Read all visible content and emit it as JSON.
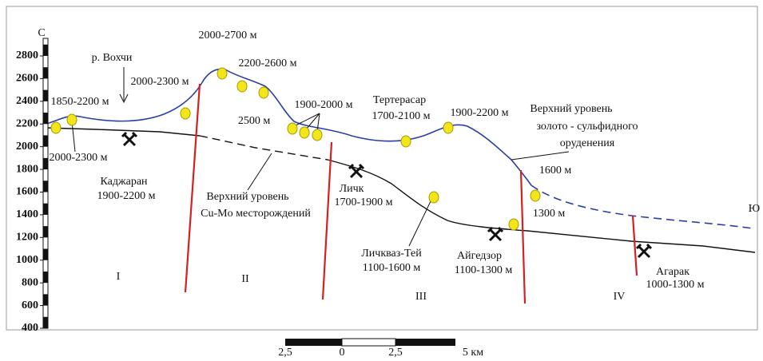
{
  "axis": {
    "ticks": [
      2800,
      2600,
      2400,
      2200,
      2000,
      1800,
      1600,
      1400,
      1200,
      1000,
      800,
      600,
      400
    ]
  },
  "compass": {
    "north": "С",
    "south": "Ю"
  },
  "zones": [
    "I",
    "II",
    "III",
    "IV"
  ],
  "labels": [
    "2000-2700 м",
    "р. Вохчи",
    "2000-2300 м",
    "2200-2600 м",
    "1850-2200 м",
    "2500 м",
    "1900-2000 м",
    "Тертерасар",
    "1700-2100 м",
    "1900-2200 м",
    "Верхний уровень",
    "золото - сульфидного",
    "оруденения",
    "2000-2300 м",
    "Каджаран",
    "1900-2200 м",
    "Верхний уровень",
    "Cu-Mo месторождений",
    "Личк",
    "1700-1900 м",
    "1600 м",
    "1300 м",
    "Личкваз-Тей",
    "1100-1600 м",
    "Айгедзор",
    "1100-1300 м",
    "Агарак",
    "1000-1300 м"
  ],
  "scale": {
    "ticks": [
      "2,5",
      "0",
      "2,5",
      "5 км"
    ]
  }
}
